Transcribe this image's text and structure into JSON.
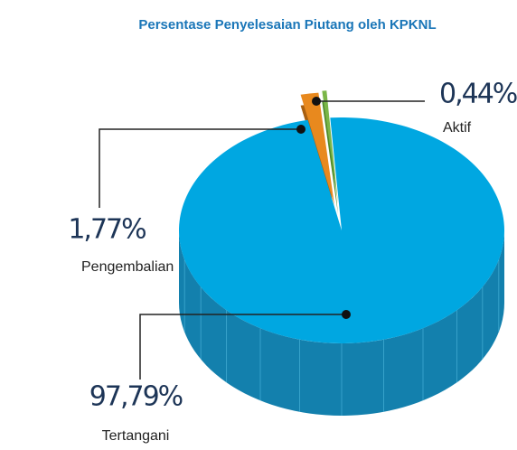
{
  "chart_data": {
    "type": "pie",
    "title": "Persentase Penyelesaian Piutang oleh KPKNL",
    "categories": [
      "Tertangani",
      "Pengembalian",
      "Aktif"
    ],
    "values": [
      97.79,
      1.77,
      0.44
    ],
    "value_labels": [
      "97,79%",
      "1,77%",
      "0,44%"
    ],
    "colors": [
      "#00a7e1",
      "#e8891e",
      "#7ab648"
    ]
  }
}
